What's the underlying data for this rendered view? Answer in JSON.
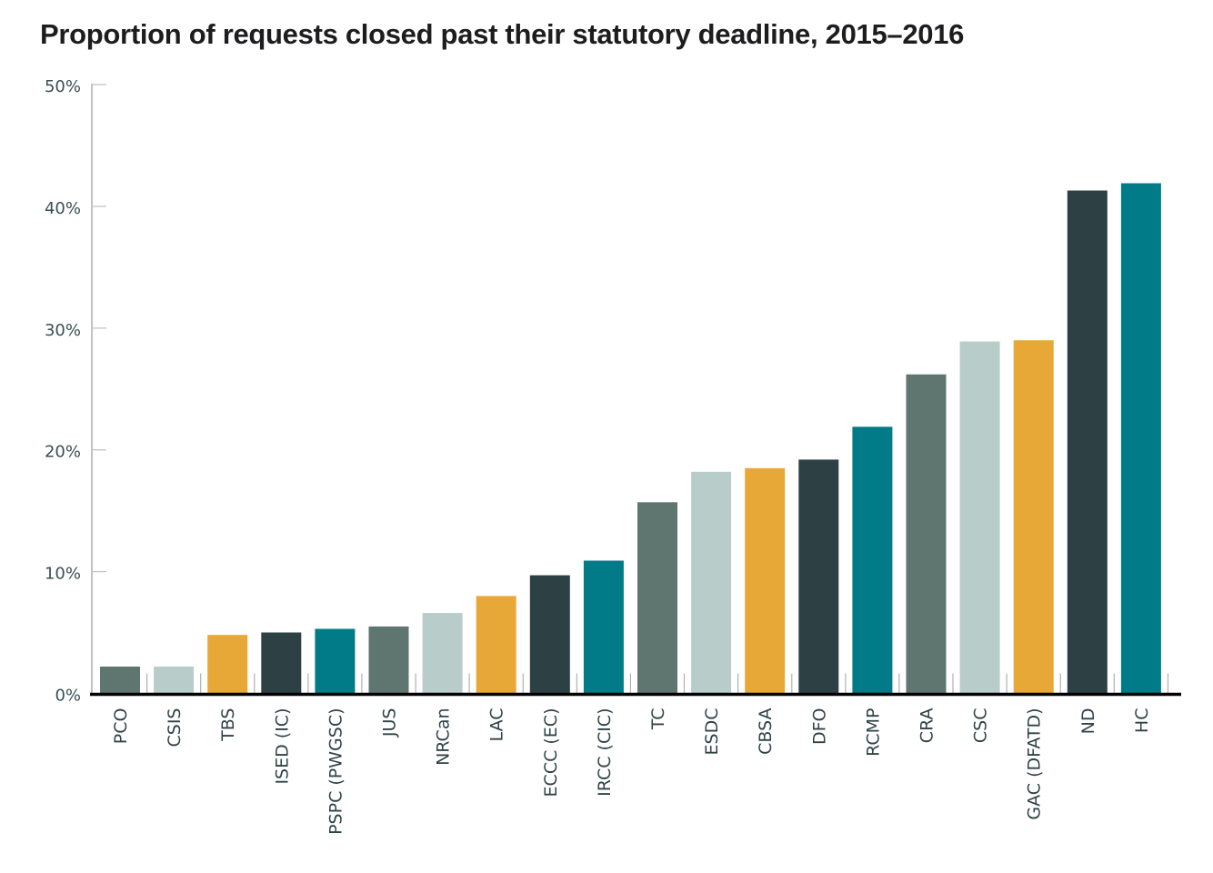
{
  "chart_data": {
    "type": "bar",
    "title": "Proportion of requests closed past their statutory deadline, 2015–2016",
    "xlabel": "",
    "ylabel": "",
    "ylim": [
      0,
      50
    ],
    "yticks": [
      0,
      10,
      20,
      30,
      40,
      50
    ],
    "ytick_labels": [
      "0%",
      "10%",
      "20%",
      "30%",
      "40%",
      "50%"
    ],
    "grid": false,
    "legend": "none",
    "categories": [
      "PCO",
      "CSIS",
      "TBS",
      "ISED (IC)",
      "PSPC (PWGSC)",
      "JUS",
      "NRCan",
      "LAC",
      "ECCC (EC)",
      "IRCC (CIC)",
      "TC",
      "ESDC",
      "CBSA",
      "DFO",
      "RCMP",
      "CRA",
      "CSC",
      "GAC (DFATD)",
      "ND",
      "HC"
    ],
    "values": [
      2.2,
      2.2,
      4.8,
      5.0,
      5.3,
      5.5,
      6.6,
      8.0,
      9.7,
      10.9,
      15.7,
      18.2,
      18.5,
      19.2,
      21.9,
      26.2,
      28.9,
      29.0,
      41.3,
      41.9
    ],
    "bar_colors": [
      "#5e7570",
      "#b8ccca",
      "#e8a838",
      "#2d4145",
      "#017b87",
      "#5e7570",
      "#b8ccca",
      "#e8a838",
      "#2d4145",
      "#017b87",
      "#5e7570",
      "#b8ccca",
      "#e8a838",
      "#2d4145",
      "#017b87",
      "#5e7570",
      "#b8ccca",
      "#e8a838",
      "#2d4145",
      "#017b87"
    ],
    "unit": "%"
  },
  "colors": {
    "axis": "#a0a0a0",
    "baseline": "#000000",
    "title": "#1d1d1f"
  }
}
